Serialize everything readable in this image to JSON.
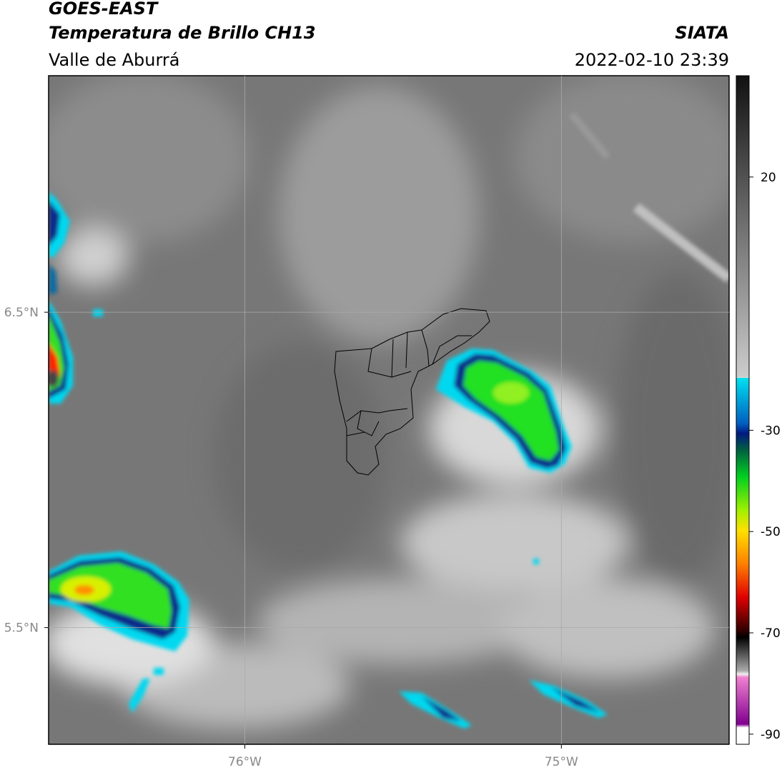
{
  "header": {
    "title": "GOES-EAST",
    "subtitle": "Temperatura de Brillo CH13",
    "region": "Valle de Aburrá",
    "source": "SIATA",
    "datetime": "2022-02-10 23:39"
  },
  "map": {
    "xlim": [
      -76.62,
      -74.47
    ],
    "ylim": [
      5.13,
      7.25
    ],
    "xticks": [
      {
        "value": -76,
        "label": "76°W"
      },
      {
        "value": -75,
        "label": "75°W"
      }
    ],
    "yticks": [
      {
        "value": 6.5,
        "label": "6.5°N"
      },
      {
        "value": 5.5,
        "label": "5.5°N"
      }
    ],
    "grid": true
  },
  "colorbar": {
    "lim": [
      -92,
      40
    ],
    "ticks": [
      20,
      -30,
      -50,
      -70,
      -90
    ]
  }
}
